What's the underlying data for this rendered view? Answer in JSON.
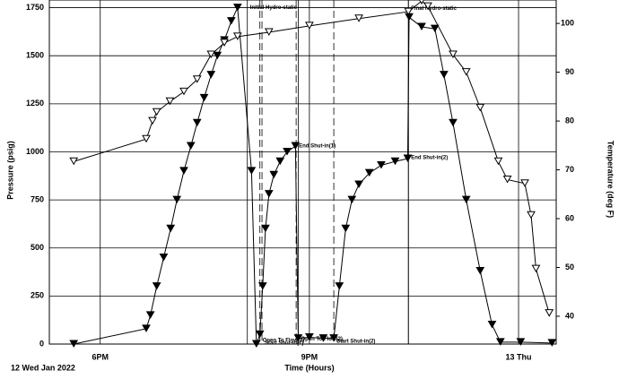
{
  "chart_data": {
    "type": "line",
    "x_label": "Time (Hours)",
    "y_label": "Pressure (psig)",
    "y2_label": "Temperature (deg F)",
    "date_label": "12 Wed Jan 2022",
    "xlim": [
      17.27,
      24.54
    ],
    "xticks": [
      {
        "value": 18,
        "label": "6PM"
      },
      {
        "value": 21,
        "label": "9PM"
      },
      {
        "value": 24,
        "label": "13 Thu"
      }
    ],
    "ylim": [
      0,
      1790
    ],
    "yticks": [
      0,
      250,
      500,
      750,
      1000,
      1250,
      1500,
      1750
    ],
    "y2lim": [
      34.3,
      104.8
    ],
    "y2ticks": [
      40,
      50,
      60,
      70,
      80,
      90,
      100
    ],
    "grid": true,
    "series": [
      {
        "color": "#000000",
        "marker_filled": true,
        "x": [
          17.62,
          18.66,
          18.72,
          18.81,
          18.91,
          19.01,
          19.1,
          19.2,
          19.3,
          19.39,
          19.49,
          19.59,
          19.68,
          19.78,
          19.88,
          19.97,
          20.17,
          20.24,
          20.29,
          20.33,
          20.37,
          20.42,
          20.49,
          20.58,
          20.68,
          20.8,
          20.84,
          21.0,
          21.2,
          21.35,
          21.43,
          21.52,
          21.61,
          21.71,
          21.86,
          22.03,
          22.23,
          22.41,
          22.43,
          22.61,
          22.8,
          22.93,
          23.06,
          23.25,
          23.45,
          23.62,
          23.74,
          24.03,
          24.48
        ],
        "values": [
          0,
          80,
          150,
          300,
          450,
          600,
          750,
          900,
          1030,
          1150,
          1280,
          1400,
          1500,
          1580,
          1680,
          1750,
          900,
          0,
          50,
          300,
          600,
          780,
          880,
          950,
          1000,
          1030,
          30,
          35,
          30,
          30,
          300,
          600,
          750,
          830,
          890,
          930,
          950,
          965,
          1700,
          1650,
          1640,
          1400,
          1150,
          750,
          380,
          100,
          10,
          10,
          5
        ]
      },
      {
        "color": "#000000",
        "marker_filled": false,
        "axis": "y2",
        "x": [
          17.62,
          18.66,
          18.75,
          18.81,
          19.0,
          19.2,
          19.39,
          19.59,
          19.78,
          19.97,
          20.42,
          21.0,
          21.71,
          22.42,
          22.61,
          22.7,
          23.06,
          23.25,
          23.45,
          23.71,
          23.84,
          24.09,
          24.18,
          24.25,
          24.44
        ],
        "values": [
          71.7,
          76.3,
          80,
          81.8,
          84,
          86,
          88.5,
          93.6,
          96,
          97.3,
          98.2,
          99.5,
          101,
          102.4,
          104.6,
          103.5,
          93.6,
          90,
          82.7,
          71.7,
          68,
          67.2,
          60.7,
          49.7,
          40.6
        ]
      }
    ],
    "events": [
      {
        "label": "Initial Hydro-static",
        "x": 20.11,
        "y": 1750,
        "dashed": false
      },
      {
        "label": "Open To Flow(1)",
        "x": 20.29,
        "y": 20,
        "dashed": true
      },
      {
        "label": "Start Shut-in(1)",
        "x": 20.32,
        "y": 5,
        "dashed": true
      },
      {
        "label": "End Shut-in(1)",
        "x": 20.81,
        "y": 1030,
        "dashed": true
      },
      {
        "label": "Open To Flow(2)",
        "x": 20.84,
        "y": 25,
        "dashed": false
      },
      {
        "label": "Start Shut-in(2)",
        "x": 21.35,
        "y": 15,
        "dashed": true
      },
      {
        "label": "End Shut-in(2)",
        "x": 22.42,
        "y": 970,
        "dashed": false
      },
      {
        "label": "Final Hydro-static",
        "x": 22.42,
        "y": 1745,
        "dashed": false
      }
    ]
  }
}
